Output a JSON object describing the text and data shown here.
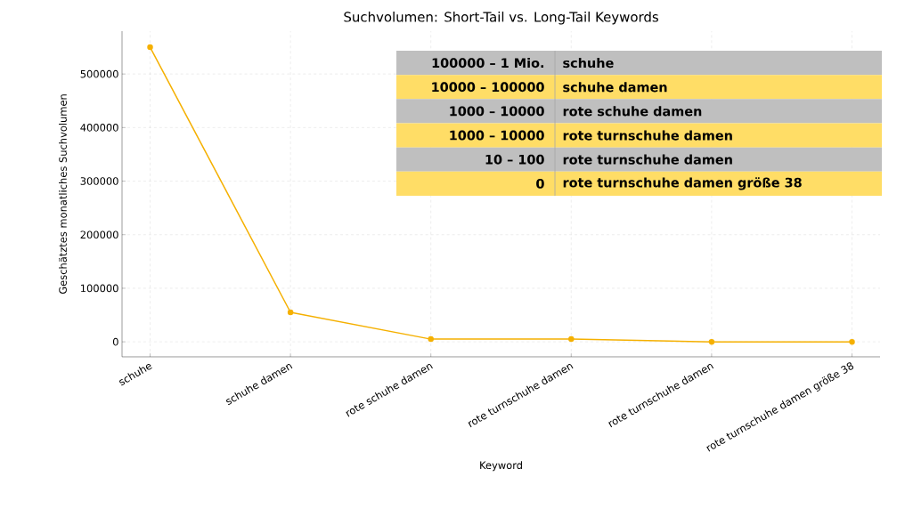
{
  "chart_data": {
    "type": "line",
    "title": "Suchvolumen: Short-Tail vs. Long-Tail Keywords",
    "xlabel": "Keyword",
    "ylabel": "Geschätztes monatliches Suchvolumen",
    "categories": [
      "schuhe",
      "schuhe damen",
      "rote schuhe damen",
      "rote turnschuhe damen",
      "rote turnschuhe damen",
      "rote turnschuhe damen größe 38"
    ],
    "values": [
      550000,
      55000,
      5000,
      5000,
      0,
      0
    ],
    "annotations": [
      "100000 – 1 Mio.",
      "10000 – 100000",
      "1000 – 10000",
      "1000 – 10000",
      "10 – 100",
      "0"
    ],
    "color": "#f5b000",
    "marker": "circle",
    "grid": true,
    "ylim": [
      -28000,
      580000
    ],
    "yticks": [
      0,
      100000,
      200000,
      300000,
      400000,
      500000
    ]
  }
}
